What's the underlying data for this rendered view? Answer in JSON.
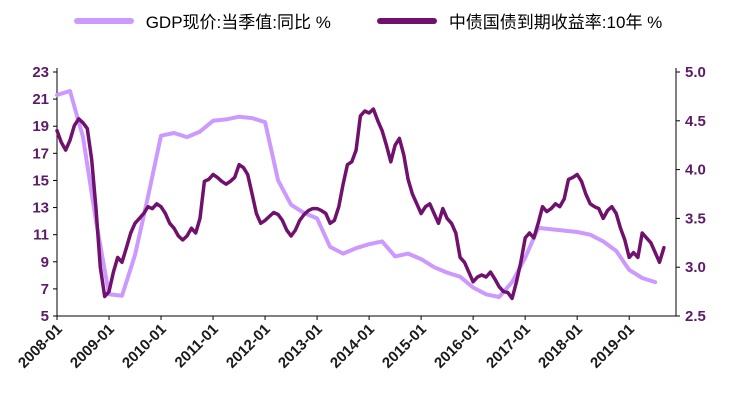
{
  "legend": [
    {
      "label": "GDP现价:当季值:同比 %",
      "color": "#CC99FF"
    },
    {
      "label": "中债国债到期收益率:10年 %",
      "color": "#70116E"
    }
  ],
  "colors": {
    "gdp_line": "#CC99FF",
    "yield_line": "#70116E",
    "y_axis_label": "#5E1A68",
    "x_axis_label": "#1A1A1A",
    "axis_line": "#000000"
  },
  "chart_data": {
    "type": "line",
    "title": "",
    "legend_position": "top",
    "grid": false,
    "x_range": [
      2008.0,
      2019.9
    ],
    "x_tick_positions": [
      2008,
      2009,
      2010,
      2011,
      2012,
      2013,
      2014,
      2015,
      2016,
      2017,
      2018,
      2019
    ],
    "x_tick_labels": [
      "2008-01",
      "2009-01",
      "2010-01",
      "2011-01",
      "2012-01",
      "2013-01",
      "2014-01",
      "2015-01",
      "2016-01",
      "2017-01",
      "2018-01",
      "2019-01"
    ],
    "axes": {
      "left": {
        "range": [
          5,
          23
        ],
        "ticks": [
          5,
          7,
          9,
          11,
          13,
          15,
          17,
          19,
          21,
          23
        ],
        "tick_labels": [
          "5",
          "7",
          "9",
          "11",
          "13",
          "15",
          "17",
          "19",
          "21",
          "23"
        ]
      },
      "right": {
        "range": [
          2.5,
          5.0
        ],
        "ticks": [
          2.5,
          3.0,
          3.5,
          4.0,
          4.5,
          5.0
        ],
        "tick_labels": [
          "2.5",
          "3.0",
          "3.5",
          "4.0",
          "4.5",
          "5.0"
        ]
      }
    },
    "series": [
      {
        "name": "GDP现价:当季值:同比 %",
        "axis": "left",
        "color": "#CC99FF",
        "stroke_width": 4,
        "x_start": 2008.0,
        "x_step": 0.25,
        "values": [
          21.3,
          21.6,
          18.2,
          12.0,
          6.6,
          6.5,
          9.5,
          13.8,
          18.3,
          18.5,
          18.2,
          18.6,
          19.4,
          19.5,
          19.7,
          19.6,
          19.3,
          15.0,
          13.2,
          12.6,
          12.2,
          10.1,
          9.6,
          10.0,
          10.3,
          10.5,
          9.4,
          9.6,
          9.2,
          8.6,
          8.2,
          7.9,
          7.1,
          6.6,
          6.4,
          7.5,
          9.3,
          11.5,
          11.4,
          11.3,
          11.2,
          11.0,
          10.5,
          9.8,
          8.4,
          7.8,
          7.5
        ]
      },
      {
        "name": "中债国债到期收益率:10年 %",
        "axis": "right",
        "color": "#70116E",
        "stroke_width": 3.5,
        "x_start": 2008.0,
        "x_step": 0.0833333,
        "values": [
          4.4,
          4.28,
          4.2,
          4.3,
          4.45,
          4.52,
          4.48,
          4.42,
          4.1,
          3.6,
          3.0,
          2.7,
          2.75,
          2.95,
          3.1,
          3.05,
          3.2,
          3.35,
          3.45,
          3.5,
          3.55,
          3.62,
          3.6,
          3.65,
          3.62,
          3.55,
          3.45,
          3.4,
          3.32,
          3.28,
          3.32,
          3.4,
          3.35,
          3.5,
          3.88,
          3.9,
          3.95,
          3.92,
          3.88,
          3.85,
          3.88,
          3.92,
          4.05,
          4.02,
          3.95,
          3.75,
          3.55,
          3.45,
          3.48,
          3.52,
          3.56,
          3.54,
          3.48,
          3.38,
          3.32,
          3.38,
          3.48,
          3.54,
          3.58,
          3.6,
          3.6,
          3.58,
          3.55,
          3.45,
          3.48,
          3.62,
          3.85,
          4.05,
          4.08,
          4.2,
          4.55,
          4.6,
          4.58,
          4.62,
          4.5,
          4.4,
          4.25,
          4.08,
          4.25,
          4.32,
          4.15,
          3.9,
          3.75,
          3.65,
          3.55,
          3.62,
          3.65,
          3.55,
          3.45,
          3.6,
          3.5,
          3.45,
          3.35,
          3.1,
          3.05,
          2.95,
          2.85,
          2.9,
          2.92,
          2.9,
          2.95,
          2.88,
          2.8,
          2.75,
          2.74,
          2.68,
          2.85,
          3.05,
          3.3,
          3.35,
          3.3,
          3.45,
          3.62,
          3.57,
          3.6,
          3.65,
          3.62,
          3.7,
          3.9,
          3.92,
          3.95,
          3.88,
          3.75,
          3.65,
          3.62,
          3.6,
          3.5,
          3.58,
          3.62,
          3.55,
          3.4,
          3.28,
          3.1,
          3.15,
          3.1,
          3.35,
          3.3,
          3.25,
          3.15,
          3.05,
          3.2
        ]
      }
    ]
  }
}
